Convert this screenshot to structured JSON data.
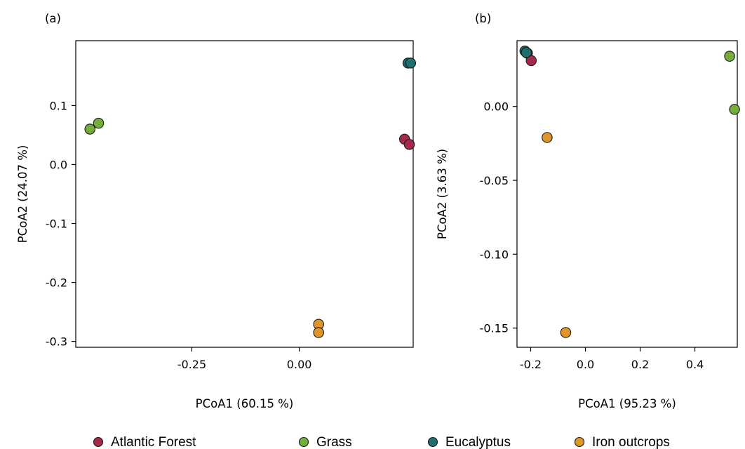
{
  "colors": {
    "Atlantic Forest": "#a52a4a",
    "Grass": "#74ad3a",
    "Eucalyptus": "#1f6e6e",
    "Iron outcrops": "#e0952b"
  },
  "legend": {
    "items": [
      "Atlantic Forest",
      "Grass",
      "Eucalyptus",
      "Iron outcrops"
    ]
  },
  "chart_data": [
    {
      "type": "scatter",
      "panel_label": "(a)",
      "xlabel": "PCoA1 (60.15 %)",
      "ylabel": "PCoA2 (24.07 %)",
      "xlim": [
        -0.52,
        0.265
      ],
      "ylim": [
        -0.31,
        0.21
      ],
      "xticks": [
        -0.25,
        0.0
      ],
      "xtick_labels": [
        "-0.25",
        "0.00"
      ],
      "yticks": [
        0.1,
        0.0,
        -0.1,
        -0.2,
        -0.3
      ],
      "ytick_labels": [
        "0.1",
        "0.0",
        "-0.1",
        "-0.2",
        "-0.3"
      ],
      "series": [
        {
          "name": "Atlantic Forest",
          "x": [
            0.245,
            0.256
          ],
          "y": [
            0.043,
            0.034
          ]
        },
        {
          "name": "Grass",
          "x": [
            -0.487,
            -0.467
          ],
          "y": [
            0.06,
            0.07
          ]
        },
        {
          "name": "Eucalyptus",
          "x": [
            0.253,
            0.259
          ],
          "y": [
            0.172,
            0.172
          ]
        },
        {
          "name": "Iron outcrops",
          "x": [
            0.045,
            0.045
          ],
          "y": [
            -0.271,
            -0.285
          ]
        }
      ]
    },
    {
      "type": "scatter",
      "panel_label": "(b)",
      "xlabel": "PCoA1 (95.23 %)",
      "ylabel": "PCoA2 (3.63 %)",
      "xlim": [
        -0.25,
        0.555
      ],
      "ylim": [
        -0.163,
        0.0445
      ],
      "xticks": [
        -0.2,
        0.0,
        0.2,
        0.4
      ],
      "xtick_labels": [
        "-0.2",
        "0.0",
        "0.2",
        "0.4"
      ],
      "yticks": [
        0.0,
        -0.05,
        -0.1,
        -0.15
      ],
      "ytick_labels": [
        "0.00",
        "-0.05",
        "-0.10",
        "-0.15"
      ],
      "series": [
        {
          "name": "Atlantic Forest",
          "x": [
            -0.212,
            -0.198
          ],
          "y": [
            0.036,
            0.031
          ]
        },
        {
          "name": "Grass",
          "x": [
            0.527,
            0.545
          ],
          "y": [
            0.034,
            -0.002
          ]
        },
        {
          "name": "Eucalyptus",
          "x": [
            -0.221,
            -0.216
          ],
          "y": [
            0.0375,
            0.0365
          ]
        },
        {
          "name": "Iron outcrops",
          "x": [
            -0.14,
            -0.072
          ],
          "y": [
            -0.021,
            -0.153
          ]
        }
      ]
    }
  ]
}
